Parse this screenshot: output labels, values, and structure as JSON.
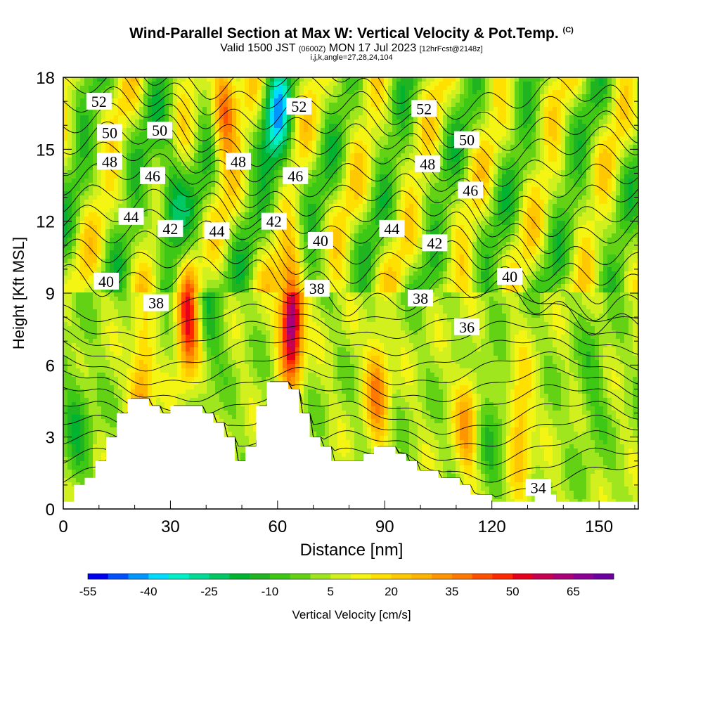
{
  "title": {
    "main": "Wind-Parallel Section at Max W: Vertical Velocity & Pot.Temp.",
    "copyright": "(C)",
    "valid_prefix": "Valid 1500 JST",
    "valid_utc": "(0600Z)",
    "valid_date": "MON 17 Jul 2023",
    "forecast": "[12hrFcst@2148z]",
    "indices": "i,j,k,angle=27,28,24,104"
  },
  "chart_data": {
    "type": "heatmap",
    "xlabel": "Distance [nm]",
    "ylabel": "Height [Kft MSL]",
    "xlim": [
      0,
      161
    ],
    "ylim": [
      0,
      18
    ],
    "x_ticks": [
      0,
      30,
      60,
      90,
      120,
      150
    ],
    "y_ticks": [
      0,
      3,
      6,
      9,
      12,
      15,
      18
    ],
    "colorbar": {
      "label": "Vertical Velocity [cm/s]",
      "tick_labels": [
        "-55",
        "-40",
        "-25",
        "-10",
        "5",
        "20",
        "35",
        "50",
        "65"
      ],
      "levels": [
        -55,
        -50,
        -45,
        -40,
        -35,
        -30,
        -25,
        -20,
        -15,
        -10,
        -5,
        0,
        5,
        10,
        15,
        20,
        25,
        30,
        35,
        40,
        45,
        50,
        55,
        60,
        65,
        70
      ],
      "colors": [
        "#0000f0",
        "#0050ff",
        "#0096ff",
        "#00dcff",
        "#00f0c8",
        "#00dc96",
        "#00c864",
        "#00b432",
        "#20b420",
        "#3cc814",
        "#64d214",
        "#a0e61e",
        "#d2f01e",
        "#f5f514",
        "#ffe000",
        "#ffc800",
        "#ffb400",
        "#ff9600",
        "#ff7800",
        "#ff5000",
        "#ff2800",
        "#e6001e",
        "#c80050",
        "#aa0078",
        "#8c0096",
        "#6e00a0"
      ]
    },
    "updrafts": [
      {
        "x": 35,
        "y": 8.0,
        "value": 50
      },
      {
        "x": 64,
        "y": 7.8,
        "value": 68
      },
      {
        "x": 45,
        "y": 17.0,
        "value": 40
      },
      {
        "x": 88,
        "y": 5.0,
        "value": 30
      },
      {
        "x": 113,
        "y": 3.5,
        "value": 25
      },
      {
        "x": 128,
        "y": 3.5,
        "value": 25
      },
      {
        "x": 22,
        "y": 5.0,
        "value": 30
      }
    ],
    "downdrafts": [
      {
        "x": 60,
        "y": 16.0,
        "value": -30
      },
      {
        "x": 30,
        "y": 13.0,
        "value": -28
      },
      {
        "x": 41,
        "y": 8.0,
        "value": -15
      },
      {
        "x": 4,
        "y": 3.5,
        "value": -15
      },
      {
        "x": 120,
        "y": 3.5,
        "value": -12
      },
      {
        "x": 148,
        "y": 5.0,
        "value": -10
      }
    ],
    "contour_labels": [
      {
        "value": "52",
        "x": 10,
        "y": 17.0
      },
      {
        "value": "52",
        "x": 66,
        "y": 16.8
      },
      {
        "value": "52",
        "x": 101,
        "y": 16.7
      },
      {
        "value": "50",
        "x": 13,
        "y": 15.7
      },
      {
        "value": "50",
        "x": 27,
        "y": 15.8
      },
      {
        "value": "50",
        "x": 113,
        "y": 15.4
      },
      {
        "value": "48",
        "x": 13,
        "y": 14.5
      },
      {
        "value": "48",
        "x": 49,
        "y": 14.5
      },
      {
        "value": "48",
        "x": 102,
        "y": 14.4
      },
      {
        "value": "46",
        "x": 25,
        "y": 13.9
      },
      {
        "value": "46",
        "x": 65,
        "y": 13.9
      },
      {
        "value": "46",
        "x": 114,
        "y": 13.3
      },
      {
        "value": "44",
        "x": 19,
        "y": 12.2
      },
      {
        "value": "44",
        "x": 43,
        "y": 11.6
      },
      {
        "value": "44",
        "x": 92,
        "y": 11.7
      },
      {
        "value": "42",
        "x": 30,
        "y": 11.7
      },
      {
        "value": "42",
        "x": 59,
        "y": 12.0
      },
      {
        "value": "42",
        "x": 104,
        "y": 11.1
      },
      {
        "value": "40",
        "x": 12,
        "y": 9.5
      },
      {
        "value": "40",
        "x": 72,
        "y": 11.2
      },
      {
        "value": "40",
        "x": 125,
        "y": 9.7
      },
      {
        "value": "38",
        "x": 26,
        "y": 8.6
      },
      {
        "value": "38",
        "x": 71,
        "y": 9.2
      },
      {
        "value": "38",
        "x": 100,
        "y": 8.8
      },
      {
        "value": "36",
        "x": 113,
        "y": 7.6
      },
      {
        "value": "34",
        "x": 133,
        "y": 0.9
      }
    ],
    "terrain": {
      "x": [
        0,
        3,
        3,
        6,
        6,
        9,
        9,
        12,
        12,
        15,
        15,
        18,
        18,
        21,
        21,
        24,
        24,
        27,
        27,
        30,
        30,
        33,
        33,
        36,
        36,
        39,
        39,
        42,
        42,
        45,
        45,
        48,
        48,
        51,
        51,
        54,
        54,
        57,
        57,
        60,
        60,
        63,
        63,
        66,
        66,
        69,
        69,
        72,
        72,
        75,
        75,
        78,
        78,
        81,
        81,
        84,
        84,
        87,
        87,
        90,
        90,
        93,
        93,
        96,
        96,
        99,
        99,
        102,
        102,
        105,
        105,
        108,
        108,
        111,
        111,
        114,
        114,
        117,
        117,
        120,
        120,
        123,
        123,
        126,
        126,
        129,
        129,
        132,
        132,
        135,
        135,
        138,
        138,
        141,
        141,
        144,
        144,
        147,
        147,
        150,
        150,
        153,
        153,
        156,
        156,
        159,
        159,
        161
      ],
      "h": [
        0.3,
        0.3,
        1.0,
        1.0,
        1.3,
        1.3,
        2.0,
        2.0,
        3.0,
        3.0,
        4.0,
        4.0,
        4.6,
        4.6,
        4.6,
        4.6,
        4.3,
        4.3,
        4.0,
        4.0,
        4.3,
        4.3,
        4.3,
        4.3,
        4.3,
        4.3,
        4.0,
        4.0,
        3.6,
        3.6,
        3.0,
        3.0,
        2.0,
        2.0,
        2.6,
        2.6,
        4.3,
        4.3,
        5.3,
        5.3,
        5.3,
        5.3,
        5.0,
        5.0,
        4.0,
        4.0,
        3.0,
        3.0,
        2.6,
        2.6,
        2.0,
        2.0,
        2.0,
        2.0,
        2.0,
        2.0,
        2.3,
        2.3,
        2.6,
        2.6,
        2.6,
        2.6,
        2.3,
        2.3,
        2.0,
        2.0,
        1.6,
        1.6,
        1.6,
        1.6,
        1.3,
        1.3,
        1.3,
        1.3,
        1.0,
        1.0,
        0.6,
        0.6,
        0.6,
        0.6,
        0.3,
        0.3,
        0.3,
        0.3,
        0.3,
        0.3,
        0.3,
        0.3,
        0.6,
        0.6,
        0.6,
        0.6,
        0.3,
        0.3,
        0.3,
        0.3,
        0.3,
        0.3,
        0.3,
        0.3,
        0.3,
        0.3,
        0.3,
        0.3,
        0.3,
        0.3,
        0.3,
        0.3
      ]
    }
  }
}
